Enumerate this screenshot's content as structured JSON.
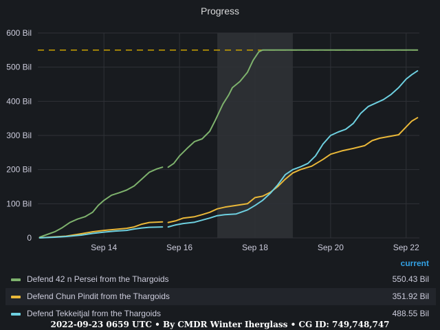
{
  "panel": {
    "title": "Progress"
  },
  "colors": {
    "green": "#7eb26d",
    "yellow": "#eab839",
    "cyan": "#6ed0e0",
    "target": "#cca300",
    "accent": "#33a2e5",
    "highlight_band": "#2c2f33",
    "grid": "#2f3237"
  },
  "legend": {
    "header": "current",
    "items": [
      {
        "label": "Defend 42 n Persei from the Thargoids",
        "value": "550.43 Bil",
        "color": "#7eb26d"
      },
      {
        "label": "Defend Chun Pindit from the Thargoids",
        "value": "351.92 Bil",
        "color": "#eab839"
      },
      {
        "label": "Defend Tekkeitjal from the Thargoids",
        "value": "488.55 Bil",
        "color": "#6ed0e0"
      }
    ]
  },
  "footer": "2022-09-23 0659 UTC • By CMDR Winter Iherglass • CG ID: 749,748,747",
  "chart_data": {
    "type": "line",
    "title": "Progress",
    "x_ticks": [
      "Sep 14",
      "Sep 16",
      "Sep 18",
      "Sep 20",
      "Sep 22"
    ],
    "x_tick_values": [
      14,
      16,
      18,
      20,
      22
    ],
    "y_ticks": [
      "0",
      "100 Bil",
      "200 Bil",
      "300 Bil",
      "400 Bil",
      "500 Bil",
      "600 Bil"
    ],
    "y_tick_values": [
      0,
      100,
      200,
      300,
      400,
      500,
      600
    ],
    "xlim": [
      12.25,
      22.35
    ],
    "ylim": [
      0,
      600
    ],
    "y_unit": "Bil",
    "grid": true,
    "legend_position": "bottom",
    "target_line": 550,
    "highlight_region": [
      17.0,
      19.0
    ],
    "series": [
      {
        "name": "Defend 42 n Persei from the Thargoids",
        "color": "#7eb26d",
        "segments": [
          [
            [
              12.3,
              2
            ],
            [
              12.5,
              10
            ],
            [
              12.7,
              18
            ],
            [
              12.9,
              30
            ],
            [
              13.1,
              45
            ],
            [
              13.3,
              55
            ],
            [
              13.5,
              62
            ],
            [
              13.7,
              75
            ],
            [
              13.85,
              95
            ],
            [
              14.0,
              110
            ],
            [
              14.2,
              125
            ],
            [
              14.4,
              132
            ],
            [
              14.6,
              140
            ],
            [
              14.8,
              152
            ],
            [
              15.0,
              172
            ],
            [
              15.2,
              192
            ],
            [
              15.4,
              202
            ],
            [
              15.55,
              207
            ]
          ],
          [
            [
              15.7,
              207
            ],
            [
              15.85,
              218
            ],
            [
              16.0,
              240
            ],
            [
              16.2,
              262
            ],
            [
              16.4,
              282
            ],
            [
              16.6,
              290
            ],
            [
              16.8,
              312
            ],
            [
              16.95,
              345
            ],
            [
              17.15,
              392
            ],
            [
              17.3,
              418
            ],
            [
              17.4,
              440
            ],
            [
              17.6,
              458
            ],
            [
              17.8,
              485
            ],
            [
              17.95,
              520
            ],
            [
              18.1,
              545
            ],
            [
              18.2,
              550
            ],
            [
              18.6,
              550
            ],
            [
              19.5,
              550
            ],
            [
              20.5,
              550
            ],
            [
              21.5,
              550
            ],
            [
              22.3,
              550
            ]
          ]
        ]
      },
      {
        "name": "Defend Chun Pindit from the Thargoids",
        "color": "#eab839",
        "segments": [
          [
            [
              12.3,
              0
            ],
            [
              12.7,
              3
            ],
            [
              13.0,
              5
            ],
            [
              13.4,
              12
            ],
            [
              13.7,
              18
            ],
            [
              14.0,
              22
            ],
            [
              14.3,
              25
            ],
            [
              14.6,
              28
            ],
            [
              14.8,
              32
            ],
            [
              15.0,
              40
            ],
            [
              15.2,
              45
            ],
            [
              15.55,
              47
            ]
          ],
          [
            [
              15.7,
              45
            ],
            [
              15.9,
              50
            ],
            [
              16.1,
              58
            ],
            [
              16.4,
              62
            ],
            [
              16.6,
              68
            ],
            [
              16.8,
              75
            ],
            [
              17.0,
              85
            ],
            [
              17.2,
              90
            ],
            [
              17.5,
              95
            ],
            [
              17.8,
              100
            ],
            [
              18.0,
              118
            ],
            [
              18.2,
              122
            ],
            [
              18.4,
              133
            ],
            [
              18.6,
              150
            ],
            [
              18.8,
              172
            ],
            [
              19.0,
              190
            ],
            [
              19.2,
              200
            ],
            [
              19.5,
              210
            ],
            [
              19.8,
              230
            ],
            [
              20.0,
              245
            ],
            [
              20.3,
              255
            ],
            [
              20.6,
              262
            ],
            [
              20.9,
              270
            ],
            [
              21.1,
              285
            ],
            [
              21.3,
              292
            ],
            [
              21.6,
              298
            ],
            [
              21.8,
              302
            ],
            [
              22.0,
              325
            ],
            [
              22.15,
              342
            ],
            [
              22.3,
              352
            ]
          ]
        ]
      },
      {
        "name": "Defend Tekkeitjal from the Thargoids",
        "color": "#6ed0e0",
        "segments": [
          [
            [
              12.3,
              0
            ],
            [
              12.7,
              2
            ],
            [
              13.0,
              4
            ],
            [
              13.4,
              8
            ],
            [
              13.7,
              13
            ],
            [
              14.0,
              17
            ],
            [
              14.3,
              20
            ],
            [
              14.6,
              22
            ],
            [
              14.8,
              26
            ],
            [
              15.0,
              29
            ],
            [
              15.2,
              31
            ],
            [
              15.55,
              32
            ]
          ],
          [
            [
              15.7,
              32
            ],
            [
              15.9,
              38
            ],
            [
              16.1,
              42
            ],
            [
              16.4,
              46
            ],
            [
              16.6,
              52
            ],
            [
              16.8,
              58
            ],
            [
              17.0,
              65
            ],
            [
              17.2,
              68
            ],
            [
              17.5,
              70
            ],
            [
              17.8,
              82
            ],
            [
              18.0,
              95
            ],
            [
              18.2,
              110
            ],
            [
              18.4,
              130
            ],
            [
              18.6,
              155
            ],
            [
              18.8,
              185
            ],
            [
              19.0,
              200
            ],
            [
              19.2,
              208
            ],
            [
              19.4,
              218
            ],
            [
              19.6,
              240
            ],
            [
              19.8,
              275
            ],
            [
              20.0,
              300
            ],
            [
              20.2,
              310
            ],
            [
              20.4,
              318
            ],
            [
              20.6,
              335
            ],
            [
              20.8,
              365
            ],
            [
              21.0,
              385
            ],
            [
              21.2,
              395
            ],
            [
              21.4,
              405
            ],
            [
              21.6,
              420
            ],
            [
              21.8,
              440
            ],
            [
              22.0,
              465
            ],
            [
              22.15,
              478
            ],
            [
              22.3,
              489
            ]
          ]
        ]
      }
    ]
  }
}
